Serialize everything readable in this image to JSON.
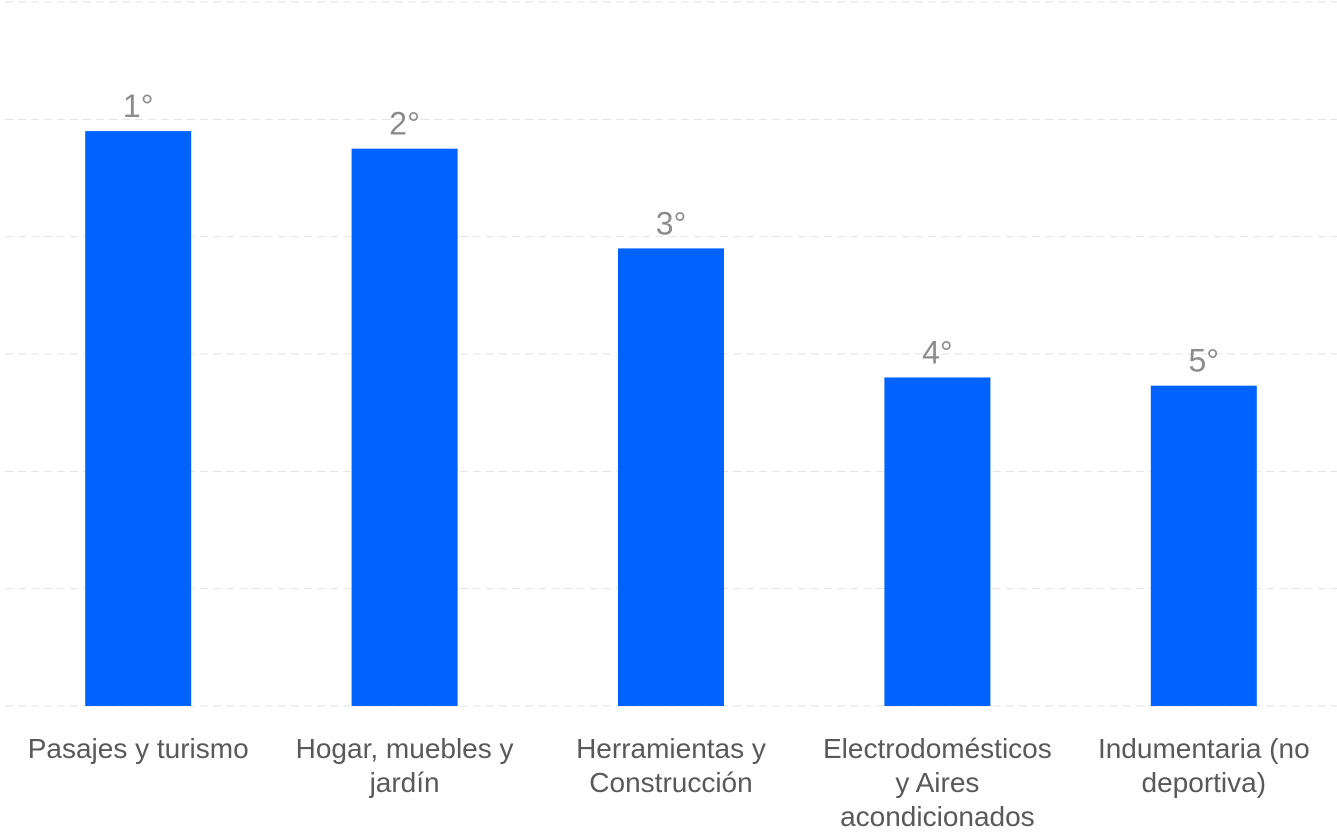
{
  "chart_data": {
    "type": "bar",
    "categories": [
      [
        "Pasajes y turismo"
      ],
      [
        "Hogar, muebles y",
        "jardín"
      ],
      [
        "Herramientas y",
        "Construcción"
      ],
      [
        "Electrodomésticos",
        "y Aires",
        "acondicionados"
      ],
      [
        "Indumentaria (no",
        "deportiva)"
      ]
    ],
    "series": [
      {
        "values": [
          4.9,
          4.75,
          3.9,
          2.8,
          2.73
        ]
      }
    ],
    "data_labels": [
      "1°",
      "2°",
      "3°",
      "4°",
      "5°"
    ],
    "ylim": [
      0,
      6
    ],
    "grid": true,
    "y_tick_labels_visible": false,
    "colors": {
      "bar": "#0062FF",
      "grid": "#E3E3E3",
      "label": "#8C8C8C",
      "axis_text": "#595959"
    }
  }
}
